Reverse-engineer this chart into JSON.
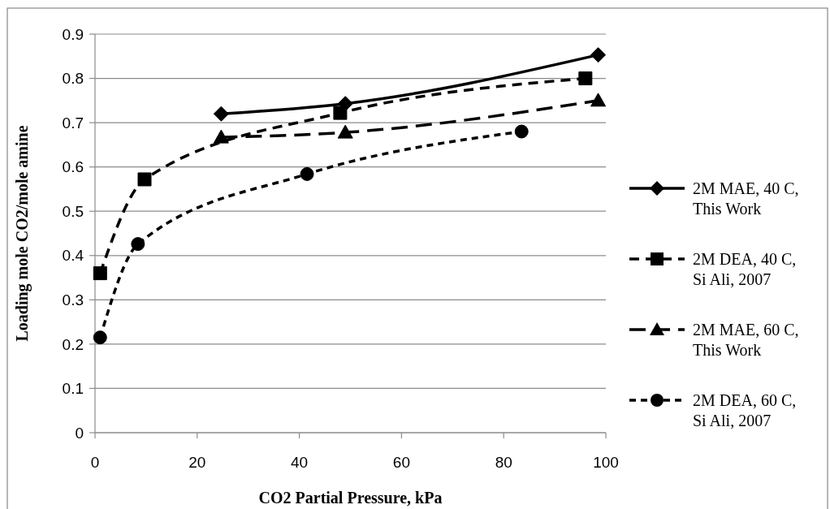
{
  "chart_data": {
    "type": "line",
    "xlabel": "CO2 Partial Pressure, kPa",
    "ylabel": "Loading mole CO2/mole amine",
    "xlim": [
      0,
      100
    ],
    "xticks": [
      0,
      20,
      40,
      60,
      80,
      100
    ],
    "ylim": [
      0,
      0.9
    ],
    "yticks": [
      0,
      0.1,
      0.2,
      0.3,
      0.4,
      0.5,
      0.6,
      0.7,
      0.8,
      0.9
    ],
    "grid": "y",
    "legend": "right",
    "series": [
      {
        "name": "2M MAE, 40 C, This Work",
        "color": "#000000",
        "marker": "diamond",
        "line_style": "solid",
        "x": [
          24.7,
          49,
          98.5
        ],
        "values": [
          0.72,
          0.743,
          0.853
        ]
      },
      {
        "name": "2M DEA, 40 C, Si Ali, 2007",
        "color": "#000000",
        "marker": "square",
        "line_style": "dashed",
        "x": [
          1,
          9.7,
          48,
          96
        ],
        "values": [
          0.36,
          0.572,
          0.722,
          0.8
        ]
      },
      {
        "name": "2M MAE, 60 C, This Work",
        "color": "#000000",
        "marker": "triangle",
        "line_style": "dashed",
        "x": [
          24.7,
          49,
          98.5
        ],
        "values": [
          0.667,
          0.678,
          0.75
        ]
      },
      {
        "name": "2M DEA, 60 C, Si Ali, 2007",
        "color": "#000000",
        "marker": "circle",
        "line_style": "dotted",
        "x": [
          1,
          8.4,
          41.5,
          83.5
        ],
        "values": [
          0.215,
          0.426,
          0.584,
          0.68
        ]
      }
    ]
  }
}
